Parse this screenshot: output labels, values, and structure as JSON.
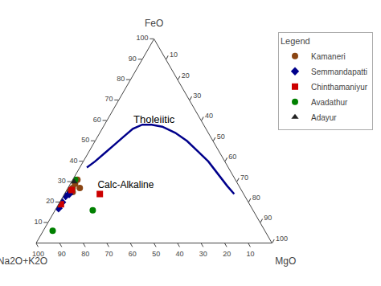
{
  "chart_data": {
    "type": "ternary",
    "axis_labels": [
      "FeO",
      "Na2O+K2O",
      "MgO"
    ],
    "ticks": [
      {
        "value": 0.1,
        "label": "10"
      },
      {
        "value": 0.2,
        "label": "20"
      },
      {
        "value": 0.3,
        "label": "30"
      },
      {
        "value": 0.4,
        "label": "40"
      },
      {
        "value": 0.5,
        "label": "50"
      },
      {
        "value": 0.6,
        "label": "60"
      },
      {
        "value": 0.7,
        "label": "70"
      },
      {
        "value": 0.8,
        "label": "80"
      },
      {
        "value": 0.9,
        "label": "90"
      },
      {
        "value": 1,
        "label": "100"
      }
    ],
    "annotations": [
      "Tholeiitic",
      "Calc-Alkaline"
    ],
    "legend": "upper right",
    "legend_title": "Legend",
    "series": [
      {
        "type": "line",
        "color": "#00008B",
        "values": [
          [
            0.37,
            0.6,
            0.03
          ],
          [
            0.4,
            0.55,
            0.05
          ],
          [
            0.44,
            0.49,
            0.07
          ],
          [
            0.48,
            0.43,
            0.09
          ],
          [
            0.52,
            0.37,
            0.11
          ],
          [
            0.56,
            0.31,
            0.13
          ],
          [
            0.58,
            0.26,
            0.16
          ],
          [
            0.58,
            0.22,
            0.2
          ],
          [
            0.57,
            0.18,
            0.25
          ],
          [
            0.54,
            0.14,
            0.32
          ],
          [
            0.5,
            0.11,
            0.39
          ],
          [
            0.45,
            0.09,
            0.46
          ],
          [
            0.4,
            0.07,
            0.53
          ],
          [
            0.34,
            0.06,
            0.6
          ],
          [
            0.28,
            0.05,
            0.67
          ],
          [
            0.24,
            0.04,
            0.72
          ]
        ]
      },
      {
        "type": "scatter",
        "name": "Kamaneri",
        "color": "#8B4513",
        "marker": "circle",
        "values": [
          [
            0.31,
            0.67,
            0.02
          ],
          [
            0.29,
            0.69,
            0.02
          ],
          [
            0.27,
            0.71,
            0.02
          ],
          [
            0.26,
            0.73,
            0.01
          ],
          [
            0.25,
            0.72,
            0.03
          ],
          [
            0.27,
            0.68,
            0.05
          ]
        ]
      },
      {
        "type": "scatter",
        "name": "Semmandapatti",
        "color": "#00008B",
        "marker": "diamond",
        "values": [
          [
            0.23,
            0.76,
            0.01
          ],
          [
            0.2,
            0.79,
            0.01
          ],
          [
            0.17,
            0.82,
            0.01
          ],
          [
            0.24,
            0.74,
            0.02
          ]
        ]
      },
      {
        "type": "scatter",
        "name": "Chinthamaniyur",
        "color": "#CC0000",
        "marker": "square",
        "values": [
          [
            0.26,
            0.72,
            0.02
          ],
          [
            0.19,
            0.8,
            0.01
          ],
          [
            0.24,
            0.61,
            0.15
          ]
        ]
      },
      {
        "type": "scatter",
        "name": "Avadathur",
        "color": "#008000",
        "marker": "circle",
        "values": [
          [
            0.31,
            0.68,
            0.01
          ],
          [
            0.16,
            0.68,
            0.16
          ],
          [
            0.06,
            0.9,
            0.04
          ]
        ]
      },
      {
        "type": "scatter",
        "name": "Adayur",
        "color": "#222222",
        "marker": "triangle-up",
        "values": [
          [
            0.3,
            0.69,
            0.01
          ]
        ]
      }
    ]
  }
}
